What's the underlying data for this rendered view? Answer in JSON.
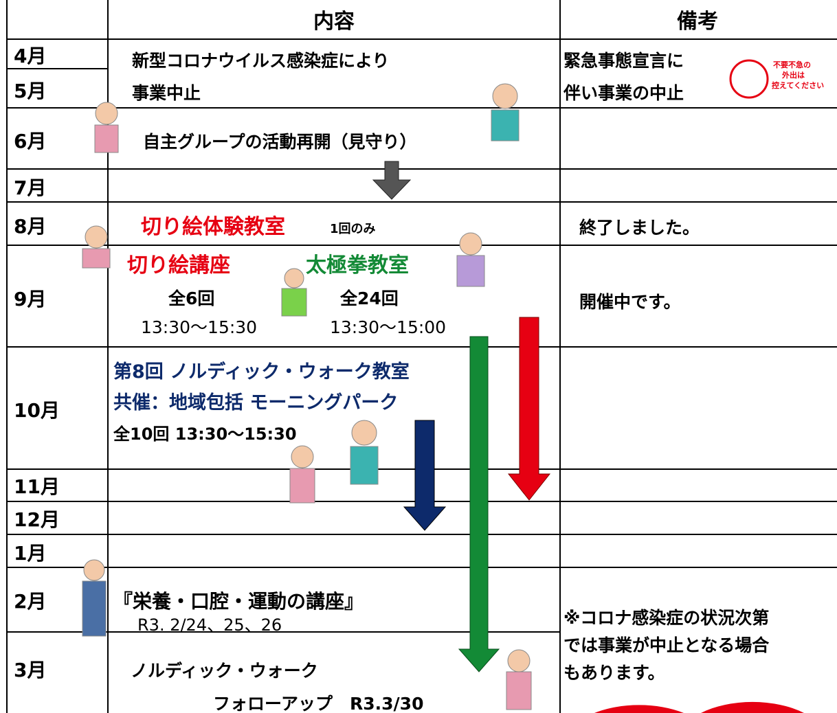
{
  "header": {
    "content": "内容",
    "notes": "備考"
  },
  "months": [
    "4月",
    "5月",
    "6月",
    "7月",
    "8月",
    "9月",
    "10月",
    "11月",
    "12月",
    "1月",
    "2月",
    "3月"
  ],
  "content": [
    "新型コロナウイルス感染症により",
    "事業中止",
    "自主グループの活動再開（見守り）",
    "切り絵体験教室",
    "1回のみ",
    "切り絵講座",
    "太極拳教室",
    "全6回",
    "全24回",
    "13:30～15:30",
    "13:30～15:00",
    "第8回 ノルディック・ウォーク教室",
    "共催：地域包括 モーニングパーク",
    "全10回 13:30～15:30",
    "『栄養・口腔・運動の講座』",
    "R3. 2/24、25、26",
    "ノルディック・ウォーク",
    "フォローアップ　R3.3/30"
  ],
  "notes": [
    "緊急事態宣言に",
    "伴い事業の中止",
    "不要不急の",
    "外出は",
    "控えてください",
    "終了しました。",
    "開催中です。",
    "※コロナ感染症の状況次第",
    "では事業が中止となる場合",
    "もあります。"
  ]
}
